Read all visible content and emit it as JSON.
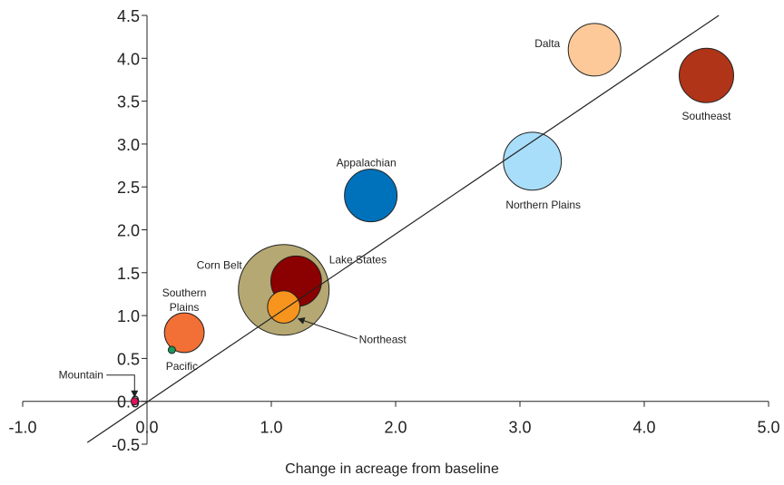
{
  "chart_data": {
    "type": "bubble",
    "x_label": "Change in acreage from baseline",
    "xlim": [
      -1,
      5
    ],
    "ylim": [
      -0.5,
      4.5
    ],
    "xticks": [
      {
        "value": -1,
        "label": "-1.0"
      },
      {
        "value": 0,
        "label": "0.0"
      },
      {
        "value": 1,
        "label": "1.0"
      },
      {
        "value": 2,
        "label": "2.0"
      },
      {
        "value": 3,
        "label": "3.0"
      },
      {
        "value": 4,
        "label": "4.0"
      },
      {
        "value": 5,
        "label": "5.0"
      }
    ],
    "yticks": [
      -0.5,
      {
        "value": 0,
        "label": "0.0"
      },
      0.5,
      {
        "value": 1,
        "label": "1.0"
      },
      1.5,
      {
        "value": 2,
        "label": "2.0"
      },
      2.5,
      {
        "value": 3,
        "label": "3.0"
      },
      3.5,
      {
        "value": 4,
        "label": "4.0"
      },
      4.5
    ],
    "points": [
      {
        "name": "Corn Belt",
        "x": 1.1,
        "y": 1.3,
        "size": 25,
        "color": "#b5a872"
      },
      {
        "name": "Lake States",
        "x": 1.2,
        "y": 1.4,
        "size": 7.8,
        "color": "#8b0000"
      },
      {
        "name": "Northeast",
        "x": 1.1,
        "y": 1.1,
        "size": 3.2,
        "color": "#f7941d"
      },
      {
        "name": "Dalta",
        "x": 3.6,
        "y": 4.1,
        "size": 8.4,
        "color": "#fdc998"
      },
      {
        "name": "Southeast",
        "x": 4.5,
        "y": 3.8,
        "size": 9,
        "color": "#b03418"
      },
      {
        "name": "Appalachian",
        "x": 1.8,
        "y": 2.4,
        "size": 8.4,
        "color": "#0072bb"
      },
      {
        "name": "Northern Plains",
        "x": 3.1,
        "y": 2.8,
        "size": 10.2,
        "color": "#a8defa"
      },
      {
        "name": "Southern Plains",
        "x": 0.3,
        "y": 0.8,
        "size": 4.8,
        "color": "#f26f36"
      },
      {
        "name": "Pacific",
        "x": 0.2,
        "y": 0.6,
        "size": 0.16,
        "color": "#1a9a5c"
      },
      {
        "name": "Mountain",
        "x": -0.1,
        "y": 0,
        "size": 0.16,
        "color": "#e0115f"
      }
    ],
    "trendline": {
      "x": [
        -0.48,
        4.6
      ],
      "values": [
        -0.48,
        4.5
      ]
    }
  }
}
